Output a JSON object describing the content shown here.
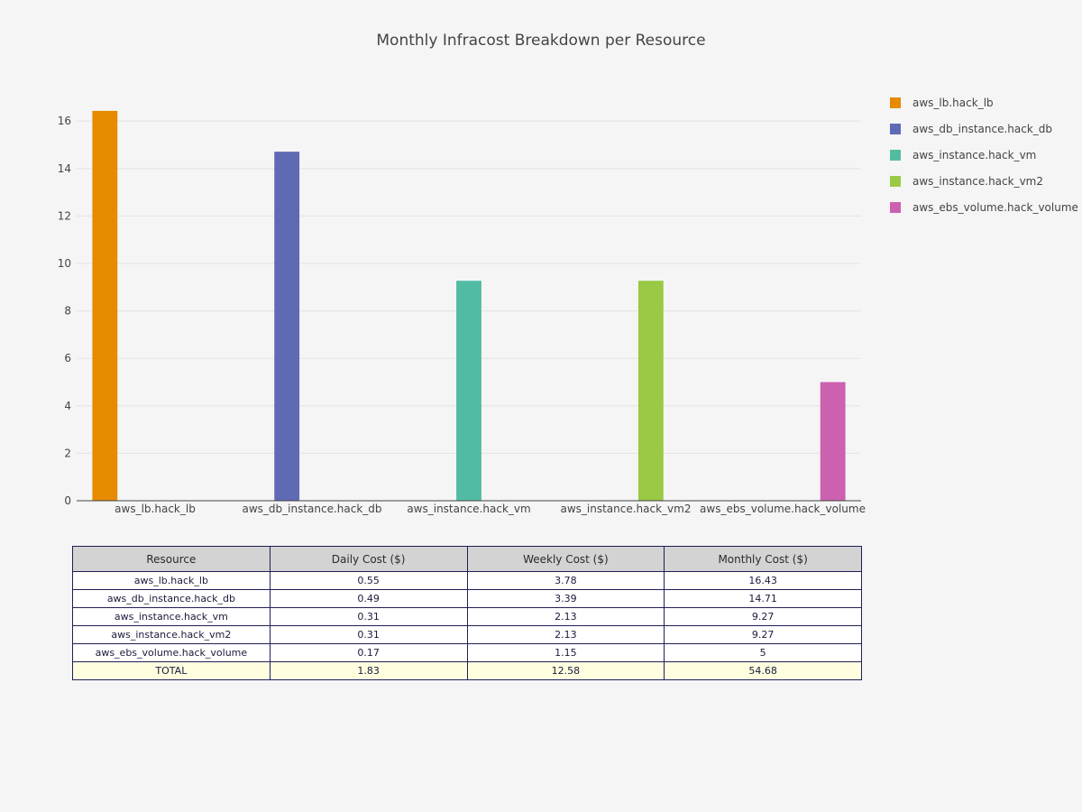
{
  "chart_data": {
    "type": "bar",
    "title": "Monthly Infracost Breakdown per Resource",
    "categories": [
      "aws_lb.hack_lb",
      "aws_db_instance.hack_db",
      "aws_instance.hack_vm",
      "aws_instance.hack_vm2",
      "aws_ebs_volume.hack_volume"
    ],
    "series": [
      {
        "name": "aws_lb.hack_lb",
        "color": "#e68a00",
        "values": [
          16.43,
          null,
          null,
          null,
          null
        ]
      },
      {
        "name": "aws_db_instance.hack_db",
        "color": "#5e6ab4",
        "values": [
          null,
          14.71,
          null,
          null,
          null
        ]
      },
      {
        "name": "aws_instance.hack_vm",
        "color": "#52bca3",
        "values": [
          null,
          null,
          9.27,
          null,
          null
        ]
      },
      {
        "name": "aws_instance.hack_vm2",
        "color": "#99c945",
        "values": [
          null,
          null,
          null,
          9.27,
          null
        ]
      },
      {
        "name": "aws_ebs_volume.hack_volume",
        "color": "#cc61b0",
        "values": [
          null,
          null,
          null,
          null,
          5
        ]
      }
    ],
    "yticks": [
      0,
      2,
      4,
      6,
      8,
      10,
      12,
      14,
      16
    ],
    "ylim": [
      0,
      17.3
    ],
    "xlabel": "",
    "ylabel": "",
    "grid": true,
    "legend": "right",
    "bar_mode": "group"
  },
  "table": {
    "headers": [
      "Resource",
      "Daily Cost ($)",
      "Weekly Cost ($)",
      "Monthly Cost ($)"
    ],
    "rows": [
      [
        "aws_lb.hack_lb",
        "0.55",
        "3.78",
        "16.43"
      ],
      [
        "aws_db_instance.hack_db",
        "0.49",
        "3.39",
        "14.71"
      ],
      [
        "aws_instance.hack_vm",
        "0.31",
        "2.13",
        "9.27"
      ],
      [
        "aws_instance.hack_vm2",
        "0.31",
        "2.13",
        "9.27"
      ],
      [
        "aws_ebs_volume.hack_volume",
        "0.17",
        "1.15",
        "5"
      ]
    ],
    "total_row": [
      "TOTAL",
      "1.83",
      "12.58",
      "54.68"
    ]
  }
}
